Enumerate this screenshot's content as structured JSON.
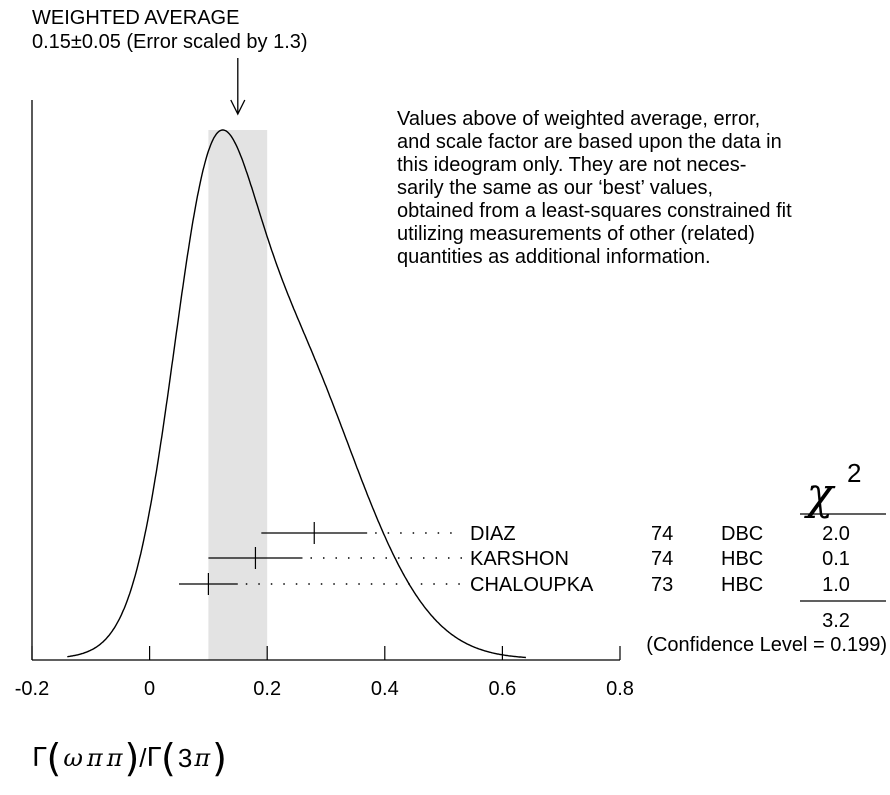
{
  "header": {
    "line1": "WEIGHTED AVERAGE",
    "line2": "0.15±0.05 (Error scaled by 1.3)"
  },
  "note": [
    "Values above of weighted average, error,",
    "and scale factor are based upon the data in",
    "this ideogram only.  They are not neces-",
    "sarily the same as our ‘best’ values,",
    "obtained from a least-squares constrained fit",
    "utilizing measurements of other (related)",
    "quantities as additional information."
  ],
  "xaxis_title": {
    "gamma1": "Γ",
    "omega": "ω",
    "pi1": "π",
    "pi2": "π",
    "slash": "/",
    "gamma2": "Γ",
    "three": "3",
    "pi3": "π"
  },
  "chart_data": {
    "type": "ideogram",
    "xlim": [
      -0.2,
      0.8
    ],
    "xticks": [
      -0.2,
      0,
      0.2,
      0.4,
      0.6,
      0.8
    ],
    "xtick_labels": [
      "-0.2",
      "0",
      "0.2",
      "0.4",
      "0.6",
      "0.8"
    ],
    "weighted_average": {
      "value": 0.15,
      "error": 0.05,
      "scale_factor": 1.3
    },
    "band": [
      0.1,
      0.2
    ],
    "chi2_header": "χ",
    "chi2_exponent": "2",
    "measurements": [
      {
        "name": "DIAZ",
        "year": "74",
        "technique": "DBC",
        "value": 0.28,
        "err_low": 0.09,
        "err_high": 0.09,
        "chi2": "2.0"
      },
      {
        "name": "KARSHON",
        "year": "74",
        "technique": "HBC",
        "value": 0.18,
        "err_low": 0.08,
        "err_high": 0.08,
        "chi2": "0.1"
      },
      {
        "name": "CHALOUPKA",
        "year": "73",
        "technique": "HBC",
        "value": 0.1,
        "err_low": 0.05,
        "err_high": 0.05,
        "chi2": "1.0"
      }
    ],
    "chi2_total": "3.2",
    "confidence_text": "(Confidence Level = 0.199)",
    "colors": {
      "band": "#e3e3e3",
      "line": "#000000"
    }
  }
}
